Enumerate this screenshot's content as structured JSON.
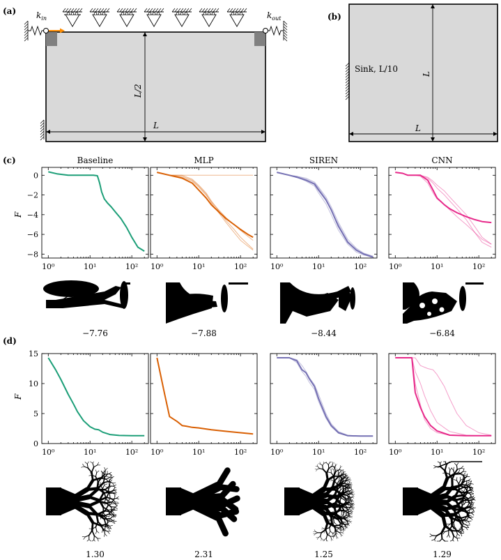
{
  "panels": {
    "a": {
      "label": "(a)",
      "k_in": "k",
      "k_in_sub": "in",
      "k_out": "k",
      "k_out_sub": "out",
      "half_length": "L/2",
      "length": "L",
      "colors": {
        "plate": "#d9d9d9",
        "support": "#808080",
        "input_arrow": "#ff8c00"
      }
    },
    "b": {
      "label": "(b)",
      "sink_label": "Sink, L/10",
      "height": "L",
      "length": "L"
    },
    "c": {
      "label": "(c)",
      "ylabel": "F",
      "scores": [
        "−7.76",
        "−7.88",
        "−8.44",
        "−6.84"
      ]
    },
    "d": {
      "label": "(d)",
      "ylabel": "F",
      "scores": [
        "1.30",
        "2.31",
        "1.25",
        "1.29"
      ]
    }
  },
  "chart_data": [
    {
      "type": "line",
      "panel": "c",
      "x_scale": "log",
      "xlim": [
        0.7,
        250
      ],
      "ylim": [
        -8.4,
        0.8
      ],
      "yticks": [
        "0",
        "−2",
        "−4",
        "−6",
        "−8"
      ],
      "ytick_values": [
        0,
        -2,
        -4,
        -6,
        -8
      ],
      "xticks": [
        "10⁰",
        "10¹",
        "10²"
      ],
      "xtick_values": [
        1,
        10,
        100
      ],
      "plots": [
        {
          "title": "Baseline",
          "color": "#1b9e77",
          "series": [
            {
              "x": [
                1,
                1.6,
                3,
                5,
                8,
                12,
                15,
                17,
                19,
                22,
                26,
                32,
                40,
                55,
                75,
                100,
                140,
                200
              ],
              "y": [
                0.35,
                0.15,
                0,
                0,
                0,
                0,
                -0.05,
                -0.8,
                -1.7,
                -2.4,
                -2.8,
                -3.2,
                -3.7,
                -4.4,
                -5.3,
                -6.3,
                -7.3,
                -7.7
              ]
            }
          ]
        },
        {
          "title": "MLP",
          "color": "#d95f02",
          "series": [
            {
              "x": [
                1,
                2,
                4,
                7,
                10,
                15,
                20,
                30,
                45,
                70,
                100,
                150,
                200
              ],
              "y": [
                0.3,
                0,
                -0.3,
                -0.8,
                -1.5,
                -2.3,
                -3.0,
                -3.7,
                -4.4,
                -5.0,
                -5.5,
                -6.0,
                -6.3
              ]
            },
            {
              "x": [
                1,
                2,
                4,
                7,
                10,
                15,
                20,
                30,
                45,
                70,
                100,
                150,
                200
              ],
              "y": [
                0.3,
                0,
                -0.2,
                -0.6,
                -1.2,
                -2.0,
                -2.7,
                -3.5,
                -4.3,
                -5.0,
                -5.6,
                -6.2,
                -6.6
              ]
            },
            {
              "x": [
                1,
                2,
                4,
                7,
                10,
                15,
                20,
                30,
                45,
                70,
                100,
                150,
                200
              ],
              "y": [
                0.3,
                0,
                0,
                -0.4,
                -1.0,
                -1.8,
                -2.6,
                -3.6,
                -4.6,
                -5.5,
                -6.3,
                -7.0,
                -7.5
              ]
            },
            {
              "x": [
                1,
                2,
                4,
                7,
                10,
                15,
                20,
                30,
                45,
                70,
                100,
                150,
                200
              ],
              "y": [
                0.3,
                0,
                -0.1,
                -0.5,
                -1.1,
                -1.9,
                -2.8,
                -3.8,
                -4.8,
                -5.8,
                -6.6,
                -7.2,
                -7.6
              ]
            },
            {
              "x": [
                1,
                2,
                4,
                7,
                10,
                15,
                20,
                30,
                45,
                70,
                100,
                150,
                200
              ],
              "y": [
                0.3,
                0,
                0,
                0,
                0,
                0,
                0,
                0,
                0,
                0,
                0,
                0,
                0
              ]
            }
          ]
        },
        {
          "title": "SIREN",
          "color": "#7570b3",
          "series": [
            {
              "x": [
                1,
                2,
                3,
                5,
                8,
                10,
                15,
                20,
                30,
                50,
                80,
                120,
                200
              ],
              "y": [
                0.3,
                0,
                -0.2,
                -0.5,
                -0.9,
                -1.5,
                -2.5,
                -3.5,
                -5.2,
                -6.8,
                -7.6,
                -8.0,
                -8.3
              ]
            },
            {
              "x": [
                1,
                2,
                3,
                5,
                8,
                10,
                15,
                20,
                30,
                50,
                80,
                120,
                200
              ],
              "y": [
                0.3,
                0,
                -0.1,
                -0.3,
                -0.7,
                -1.2,
                -2.2,
                -3.2,
                -4.8,
                -6.5,
                -7.4,
                -7.9,
                -8.2
              ]
            },
            {
              "x": [
                1,
                2,
                3,
                5,
                8,
                10,
                15,
                20,
                30,
                50,
                80,
                120,
                200
              ],
              "y": [
                0.3,
                0,
                -0.2,
                -0.6,
                -1.1,
                -1.8,
                -2.9,
                -4.0,
                -5.6,
                -7.0,
                -7.8,
                -8.1,
                -8.3
              ]
            },
            {
              "x": [
                1,
                2,
                3,
                5,
                8,
                10,
                15,
                20,
                30,
                50,
                80,
                120,
                200
              ],
              "y": [
                0.3,
                0,
                -0.1,
                -0.4,
                -0.8,
                -1.3,
                -2.4,
                -3.6,
                -5.0,
                -6.7,
                -7.5,
                -8.0,
                -8.4
              ]
            }
          ]
        },
        {
          "title": "CNN",
          "color": "#e7298a",
          "series": [
            {
              "x": [
                1,
                1.5,
                2,
                3,
                4,
                6,
                8,
                10,
                15,
                20,
                30,
                50,
                80,
                120,
                200
              ],
              "y": [
                0.3,
                0.2,
                0,
                0,
                0,
                -0.5,
                -1.5,
                -2.3,
                -3.0,
                -3.4,
                -3.8,
                -4.2,
                -4.5,
                -4.7,
                -4.8
              ]
            },
            {
              "x": [
                1,
                1.5,
                2,
                3,
                4,
                6,
                8,
                10,
                15,
                20,
                30,
                50,
                80,
                120,
                200
              ],
              "y": [
                0.3,
                0.2,
                0,
                0,
                -0.1,
                -0.8,
                -1.8,
                -2.4,
                -3.0,
                -3.5,
                -4.2,
                -5.0,
                -5.8,
                -6.5,
                -7.0
              ]
            },
            {
              "x": [
                1,
                1.5,
                2,
                3,
                4,
                6,
                8,
                10,
                15,
                20,
                30,
                50,
                80,
                120,
                200
              ],
              "y": [
                0.3,
                0.2,
                0,
                0,
                0,
                -0.3,
                -0.8,
                -1.3,
                -2.0,
                -2.6,
                -3.4,
                -4.5,
                -5.8,
                -6.8,
                -7.3
              ]
            },
            {
              "x": [
                1,
                1.5,
                2,
                3,
                4,
                6,
                8,
                10,
                15,
                20,
                30,
                50,
                80,
                120,
                200
              ],
              "y": [
                0.3,
                0.2,
                0,
                0,
                0,
                -0.2,
                -0.6,
                -1.0,
                -1.6,
                -2.2,
                -3.0,
                -4.0,
                -5.2,
                -6.3,
                -7.0
              ]
            }
          ]
        }
      ]
    },
    {
      "type": "line",
      "panel": "d",
      "x_scale": "log",
      "xlim": [
        0.7,
        250
      ],
      "ylim": [
        0,
        15
      ],
      "yticks": [
        "0",
        "5",
        "10",
        "15"
      ],
      "ytick_values": [
        0,
        5,
        10,
        15
      ],
      "xticks": [
        "10⁰",
        "10¹",
        "10²"
      ],
      "xtick_values": [
        1,
        10,
        100
      ],
      "plots": [
        {
          "title": "",
          "color": "#1b9e77",
          "series": [
            {
              "x": [
                1,
                1.5,
                2,
                3,
                4,
                5,
                7,
                10,
                13,
                16,
                20,
                30,
                50,
                100,
                200
              ],
              "y": [
                14.3,
                12.3,
                10.7,
                8.2,
                6.6,
                5.3,
                3.8,
                2.8,
                2.4,
                2.3,
                1.9,
                1.5,
                1.35,
                1.3,
                1.3
              ]
            }
          ]
        },
        {
          "title": "",
          "color": "#d95f02",
          "series": [
            {
              "x": [
                1,
                1.5,
                2,
                3,
                4,
                5,
                7,
                10,
                20,
                50,
                100,
                200
              ],
              "y": [
                14.3,
                8.5,
                4.5,
                3.7,
                3.0,
                2.9,
                2.7,
                2.6,
                2.3,
                2.0,
                1.8,
                1.6
              ]
            }
          ]
        },
        {
          "title": "",
          "color": "#7570b3",
          "series": [
            {
              "x": [
                1,
                2,
                3,
                4,
                5,
                6,
                8,
                10,
                15,
                20,
                30,
                50,
                100,
                200
              ],
              "y": [
                14.3,
                14.3,
                13.8,
                12.3,
                11.8,
                10.8,
                9.5,
                7.5,
                4.5,
                3.0,
                1.8,
                1.3,
                1.25,
                1.25
              ]
            },
            {
              "x": [
                1,
                2,
                3,
                4,
                5,
                6,
                8,
                10,
                15,
                20,
                30,
                50,
                100,
                200
              ],
              "y": [
                14.3,
                14.3,
                14.0,
                13.0,
                12.0,
                11.0,
                9.8,
                8.2,
                5.0,
                3.3,
                2.0,
                1.4,
                1.25,
                1.25
              ]
            },
            {
              "x": [
                1,
                2,
                3,
                4,
                5,
                6,
                8,
                10,
                15,
                20,
                30,
                50,
                100,
                200
              ],
              "y": [
                14.3,
                14.3,
                13.5,
                12.0,
                11.2,
                10.2,
                9.0,
                7.0,
                4.2,
                2.8,
                1.7,
                1.3,
                1.25,
                1.25
              ]
            }
          ]
        },
        {
          "title": "",
          "color": "#e7298a",
          "series": [
            {
              "x": [
                1,
                2,
                2.5,
                3,
                4,
                5,
                7,
                10,
                20,
                50,
                100,
                200
              ],
              "y": [
                14.3,
                14.3,
                14.3,
                8.5,
                6.0,
                4.5,
                3.0,
                2.1,
                1.4,
                1.3,
                1.3,
                1.3
              ]
            },
            {
              "x": [
                1,
                2,
                2.5,
                3,
                4,
                5,
                7,
                10,
                20,
                50,
                100,
                200
              ],
              "y": [
                14.3,
                14.3,
                14.3,
                12.0,
                10.0,
                8.0,
                5.5,
                3.5,
                2.0,
                1.4,
                1.3,
                1.3
              ]
            },
            {
              "x": [
                1,
                2,
                2.5,
                3,
                4,
                6,
                8,
                10,
                15,
                20,
                30,
                50,
                100,
                200
              ],
              "y": [
                14.3,
                14.3,
                14.3,
                14.3,
                13.0,
                12.5,
                12.3,
                11.5,
                9.5,
                7.5,
                5.0,
                3.0,
                1.8,
                1.4
              ]
            },
            {
              "x": [
                1,
                2,
                2.5,
                3,
                4,
                5,
                7,
                10,
                20,
                50,
                100,
                200
              ],
              "y": [
                14.3,
                14.3,
                14.3,
                10.0,
                6.5,
                4.0,
                2.5,
                1.8,
                1.4,
                1.3,
                1.3,
                1.3
              ]
            }
          ]
        }
      ]
    }
  ]
}
